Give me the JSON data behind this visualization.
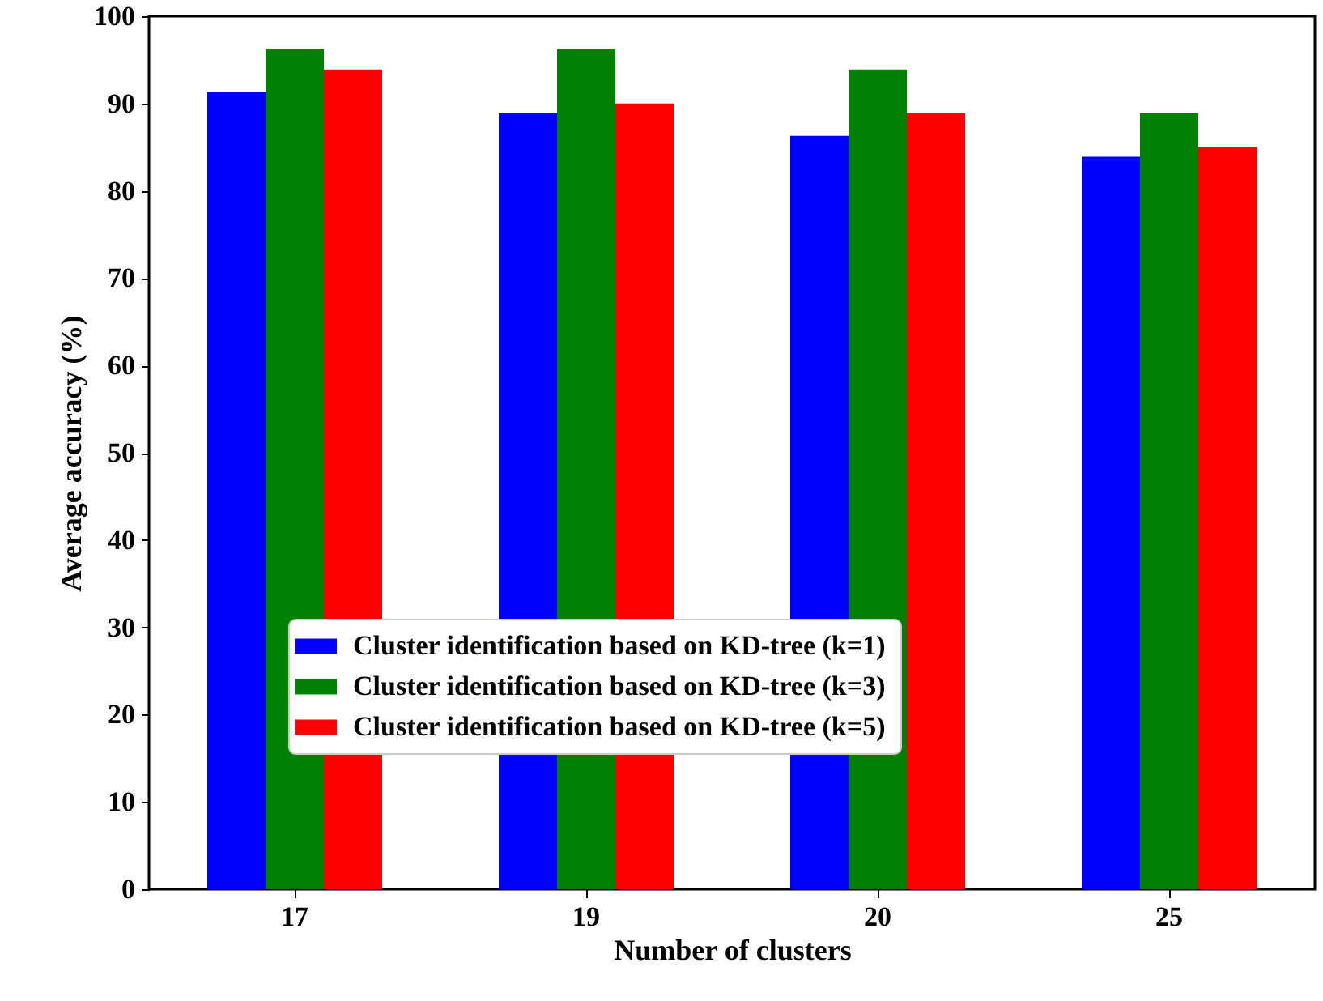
{
  "chart_data": {
    "type": "bar",
    "xlabel": "Number of clusters",
    "ylabel": "Average accuracy (%)",
    "categories": [
      "17",
      "19",
      "20",
      "25"
    ],
    "series": [
      {
        "name": "Cluster identification based on KD-tree (k=1)",
        "color": "#0000ff",
        "values": [
          91.3,
          88.9,
          86.3,
          83.9
        ]
      },
      {
        "name": "Cluster identification based on KD-tree (k=3)",
        "color": "#008000",
        "values": [
          96.3,
          96.3,
          93.9,
          88.9
        ]
      },
      {
        "name": "Cluster identification based on KD-tree (k=5)",
        "color": "#ff0000",
        "values": [
          93.9,
          90.0,
          88.9,
          85.0
        ]
      }
    ],
    "ylim": [
      0,
      100
    ],
    "yticks": [
      0,
      10,
      20,
      30,
      40,
      50,
      60,
      70,
      80,
      90,
      100
    ],
    "grid": false,
    "legend": "bottom"
  }
}
